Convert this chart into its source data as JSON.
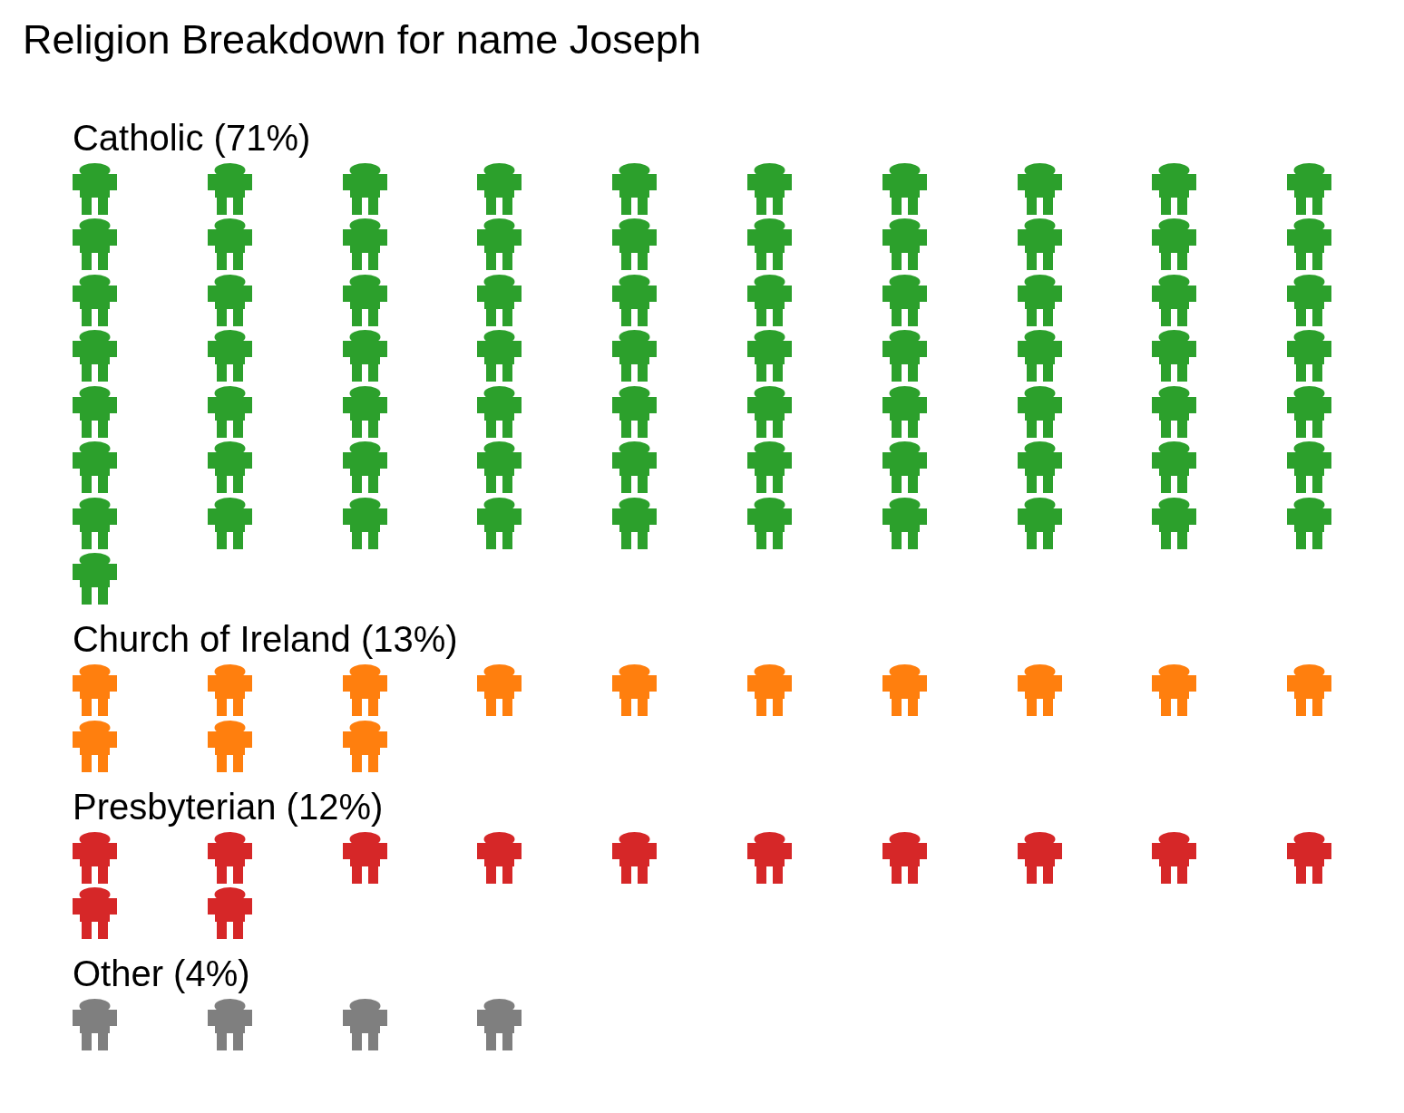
{
  "chart_data": {
    "type": "other",
    "title": "Religion Breakdown for name Joseph",
    "categories": [
      "Catholic",
      "Church of Ireland",
      "Presbyterian",
      "Other"
    ],
    "values": [
      71,
      13,
      12,
      4
    ],
    "value_labels": [
      "(71%)",
      "(13%)",
      "(12%)",
      "(4%)"
    ],
    "colors": [
      "#2ca02c",
      "#ff7f0e",
      "#d62728",
      "#7f7f7f"
    ]
  }
}
